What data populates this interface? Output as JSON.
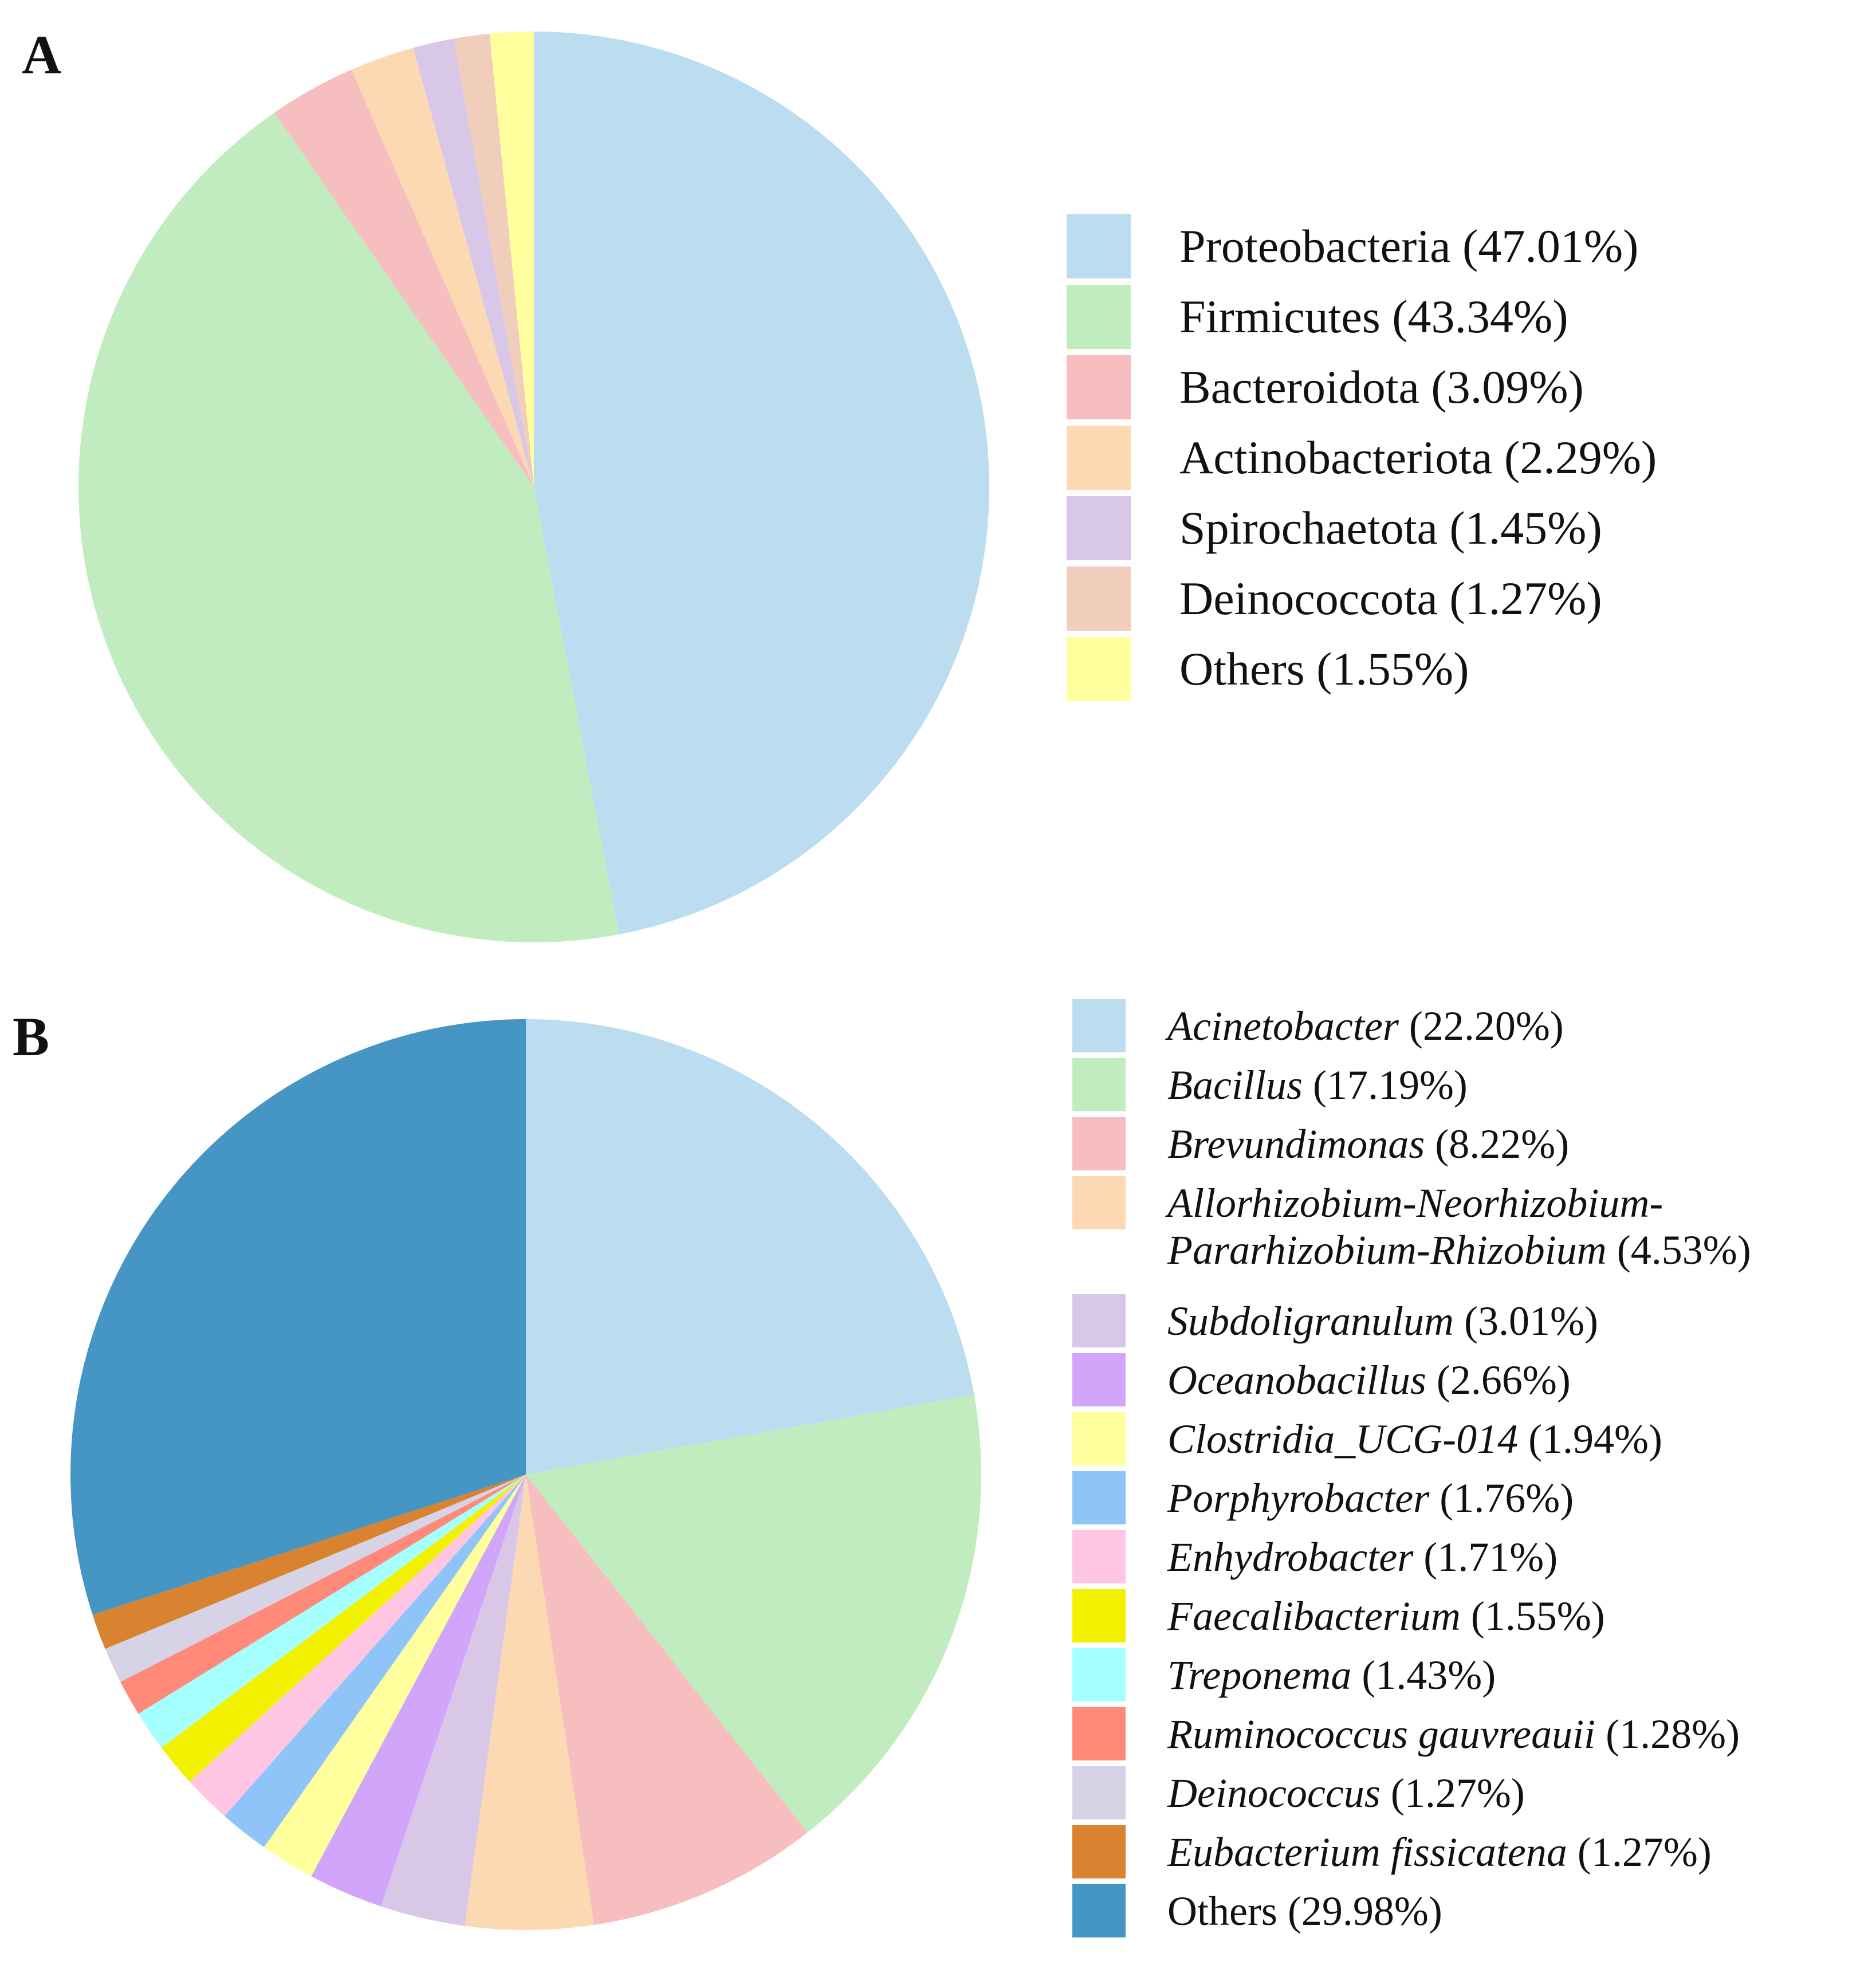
{
  "panels": [
    {
      "letter": "A"
    },
    {
      "letter": "B"
    }
  ],
  "chart_data": [
    {
      "type": "pie",
      "title": "",
      "start_angle": "12 o'clock",
      "direction": "clockwise",
      "slices": [
        {
          "name": "Proteobacteria",
          "value": 47.01,
          "label": "Proteobacteria (47.01%)",
          "color": "#BCDCF0"
        },
        {
          "name": "Firmicutes",
          "value": 43.34,
          "label": "Firmicutes (43.34%)",
          "color": "#C0ECC0"
        },
        {
          "name": "Bacteroidota",
          "value": 3.09,
          "label": "Bacteroidota (3.09%)",
          "color": "#F6BEBE"
        },
        {
          "name": "Actinobacteriota",
          "value": 2.29,
          "label": "Actinobacteriota (2.29%)",
          "color": "#FDD9B3"
        },
        {
          "name": "Spirochaetota",
          "value": 1.45,
          "label": "Spirochaetota (1.45%)",
          "color": "#D8C7E6"
        },
        {
          "name": "Deinococcota",
          "value": 1.27,
          "label": "Deinococcota (1.27%)",
          "color": "#F1CDBB"
        },
        {
          "name": "Others",
          "value": 1.55,
          "label": "Others (1.55%)",
          "color": "#FFFF9E"
        }
      ],
      "legend_position": "right"
    },
    {
      "type": "pie",
      "title": "",
      "start_angle": "12 o'clock",
      "direction": "clockwise",
      "slices": [
        {
          "name": "Acinetobacter",
          "value": 22.2,
          "pct": "(22.20%)",
          "color": "#BCDCF0"
        },
        {
          "name": "Bacillus",
          "value": 17.19,
          "pct": "(17.19%)",
          "color": "#C0ECC0"
        },
        {
          "name": "Brevundimonas",
          "value": 8.22,
          "pct": "(8.22%)",
          "color": "#F6BEBE"
        },
        {
          "name": "Allorhizobium-Neorhizobium-",
          "name_line2": "Pararhizobium-Rhizobium",
          "value": 4.53,
          "pct": "(4.53%)",
          "color": "#FDD9B3"
        },
        {
          "name": "Subdoligranulum",
          "value": 3.01,
          "pct": "(3.01%)",
          "color": "#D8C7E6"
        },
        {
          "name": "Oceanobacillus",
          "value": 2.66,
          "pct": "(2.66%)",
          "color": "#D1A6FA"
        },
        {
          "name": "Clostridia_UCG-014",
          "value": 1.94,
          "pct": "(1.94%)",
          "color": "#FFFF9E"
        },
        {
          "name": "Porphyrobacter",
          "value": 1.76,
          "pct": "(1.76%)",
          "color": "#8FC4F8"
        },
        {
          "name": "Enhydrobacter",
          "value": 1.71,
          "pct": "(1.71%)",
          "color": "#FFC6E4"
        },
        {
          "name": "Faecalibacterium",
          "value": 1.55,
          "pct": "(1.55%)",
          "color": "#F2F200"
        },
        {
          "name": "Treponema",
          "value": 1.43,
          "pct": "(1.43%)",
          "color": "#A6FFFF"
        },
        {
          "name": "Ruminococcus gauvreauii",
          "value": 1.28,
          "pct": "(1.28%)",
          "color": "#FF8A7A"
        },
        {
          "name": "Deinococcus",
          "value": 1.27,
          "pct": "(1.27%)",
          "color": "#D6D3E6"
        },
        {
          "name": "Eubacterium fissicatena",
          "value": 1.27,
          "pct": "(1.27%)",
          "color": "#D9822F"
        },
        {
          "name": "Others",
          "value": 29.98,
          "pct": "Others (29.98%)",
          "color": "#4596C4",
          "non_italic": true
        }
      ],
      "legend_position": "right"
    }
  ]
}
